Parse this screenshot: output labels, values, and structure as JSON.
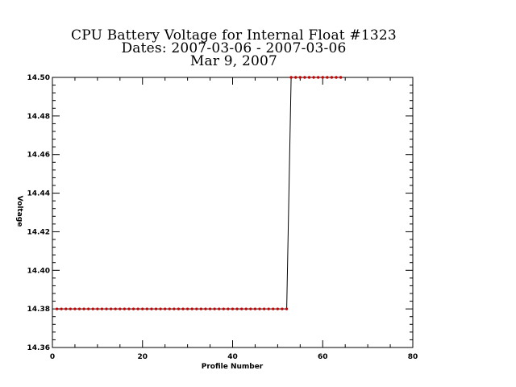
{
  "chart_data": {
    "type": "line",
    "title": "CPU Battery Voltage for Internal Float #1323",
    "subtitle": "Dates:  2007-03-06 -  2007-03-06",
    "date": "Mar  9, 2007",
    "xlabel": "Profile Number",
    "ylabel": "Voltage",
    "xlim": [
      0,
      80
    ],
    "ylim": [
      14.36,
      14.5
    ],
    "x_ticks": [
      0,
      20,
      40,
      60,
      80
    ],
    "x_tick_labels": [
      "0",
      "20",
      "40",
      "60",
      "80"
    ],
    "y_ticks": [
      14.36,
      14.38,
      14.4,
      14.42,
      14.44,
      14.46,
      14.48,
      14.5
    ],
    "y_tick_labels": [
      "14.36",
      "14.38",
      "14.40",
      "14.42",
      "14.44",
      "14.46",
      "14.48",
      "14.50"
    ],
    "grid": false,
    "line_color": "#000000",
    "marker_color": "#cc0000",
    "series": [
      {
        "segments": [
          {
            "x_start": 1,
            "x_end": 52,
            "y": 14.38
          },
          {
            "x_start": 53,
            "x_end": 64,
            "y": 14.5
          }
        ]
      }
    ]
  }
}
